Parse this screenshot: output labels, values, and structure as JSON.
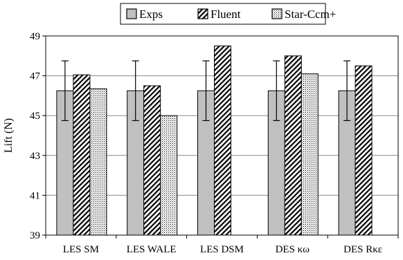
{
  "chart_data": {
    "type": "bar",
    "title": "",
    "xlabel": "",
    "ylabel": "Lift (N)",
    "ylim": [
      39,
      49
    ],
    "yticks": [
      39,
      41,
      43,
      45,
      47,
      49
    ],
    "grid": true,
    "legend_position": "top-center",
    "categories": [
      "LES SM",
      "LES WALE",
      "LES DSM",
      "DES κω",
      "DES Rκε"
    ],
    "series": [
      {
        "name": "Exps",
        "fill": "#c0c0c0",
        "pattern": "solid",
        "values": [
          46.25,
          46.25,
          46.25,
          46.25,
          46.25
        ],
        "error": [
          1.5,
          1.5,
          1.5,
          1.5,
          1.5
        ]
      },
      {
        "name": "Fluent",
        "fill": "#ffffff",
        "pattern": "diagonal-hatch",
        "values": [
          47.05,
          46.5,
          48.5,
          48.0,
          47.5
        ]
      },
      {
        "name": "Star-Ccm+",
        "fill": "#ffffff",
        "pattern": "dots",
        "values": [
          46.35,
          45.0,
          null,
          47.1,
          null
        ]
      }
    ]
  }
}
